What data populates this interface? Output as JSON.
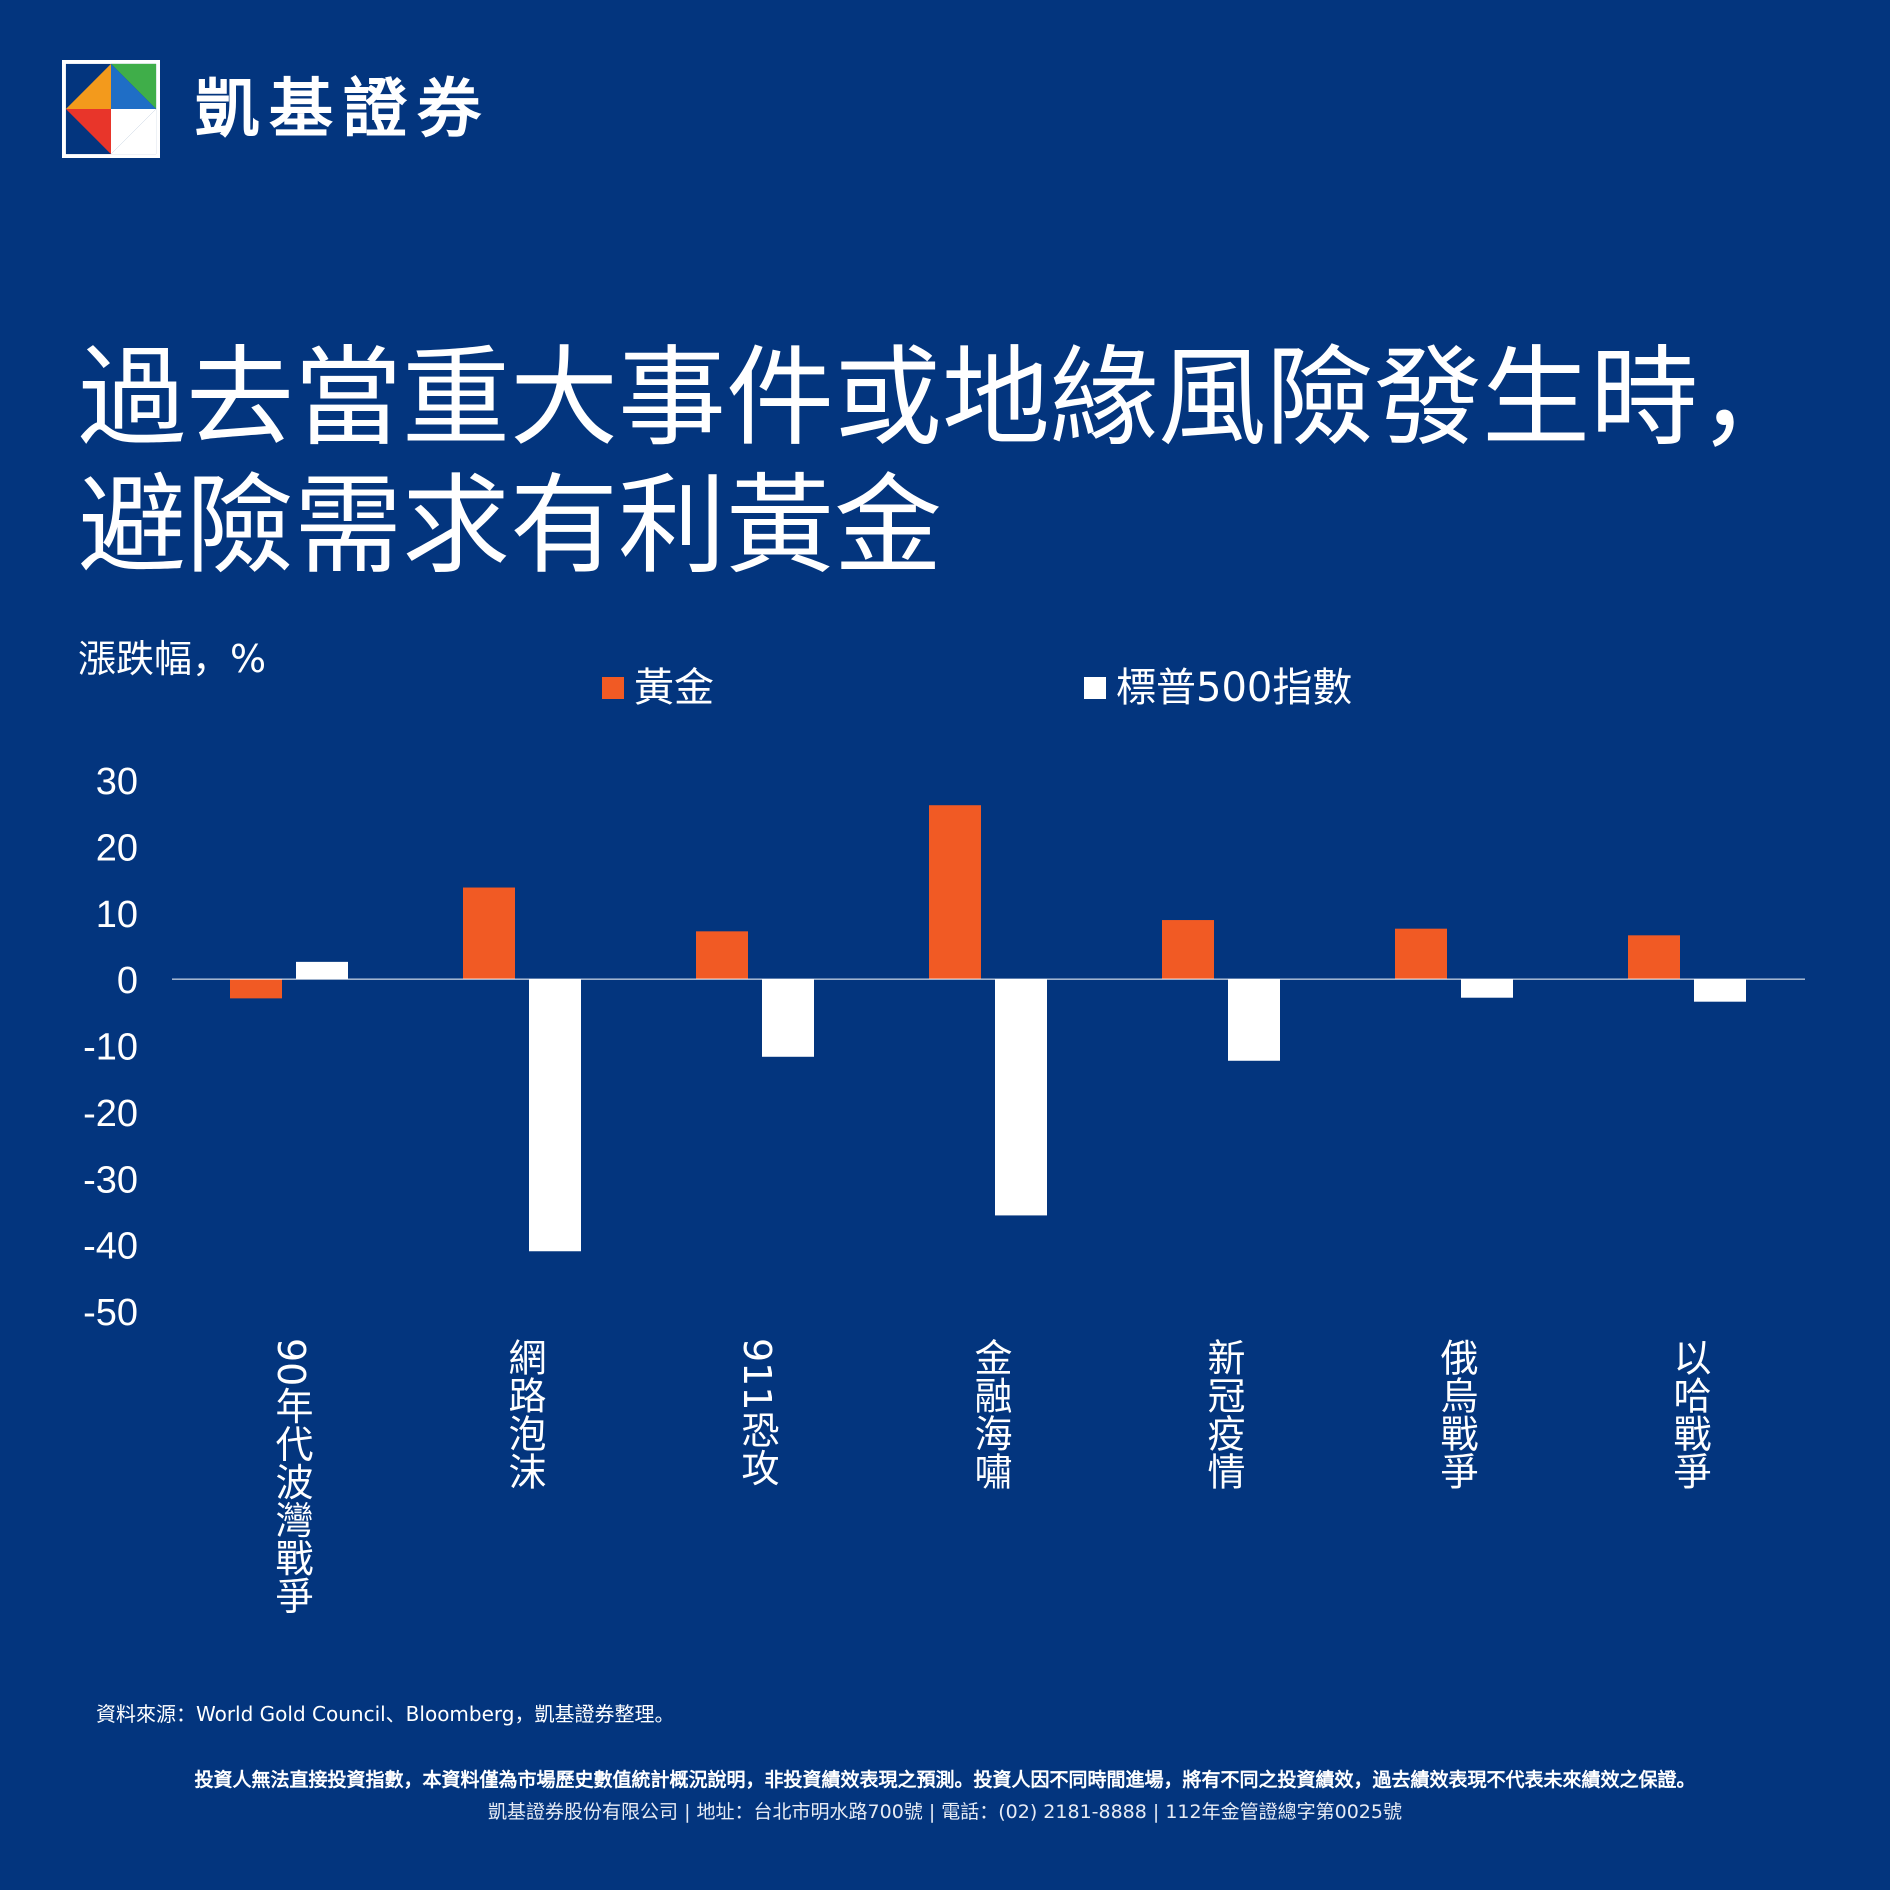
{
  "brand": {
    "name": "凱基證券",
    "logo_icon": "kgi-diamond-logo-icon",
    "logo_colors": {
      "green": "#3fae49",
      "blue": "#1f6ec6",
      "orange": "#f39a1c",
      "red": "#e8352a",
      "white": "#ffffff"
    }
  },
  "title": {
    "line1": "過去當重大事件或地緣風險發生時，",
    "line2": "避險需求有利黃金"
  },
  "chart_data": {
    "type": "bar",
    "ylabel": "漲跌幅，%",
    "ylim": [
      -50,
      30
    ],
    "yticks": [
      30,
      20,
      10,
      0,
      -10,
      -20,
      -30,
      -40,
      -50
    ],
    "categories": [
      "90年代波灣戰爭",
      "網路泡沫",
      "911恐攻",
      "金融海嘯",
      "新冠疫情",
      "俄烏戰爭",
      "以哈戰爭"
    ],
    "series": [
      {
        "name": "黃金",
        "color": "#f15a24",
        "values": [
          -2.9,
          13.8,
          7.2,
          26.2,
          8.9,
          7.6,
          6.6
        ]
      },
      {
        "name": "標普500指數",
        "color": "#ffffff",
        "values": [
          2.6,
          -41.0,
          -11.7,
          -35.6,
          -12.3,
          -2.8,
          -3.4
        ]
      }
    ],
    "grid": false,
    "legend": "top"
  },
  "footer": {
    "source": "資料來源：World Gold Council、Bloomberg，凱基證券整理。",
    "disclaimer": "投資人無法直接投資指數，本資料僅為市場歷史數值統計概況說明，非投資績效表現之預測。投資人因不同時間進場，將有不同之投資績效，過去績效表現不代表未來績效之保證。",
    "company": "凱基證券股份有限公司 | 地址：台北市明水路700號 | 電話：(02) 2181-8888 | 112年金管證總字第0025號"
  },
  "colors": {
    "background": "#03357e",
    "axis": "#ffffff"
  }
}
